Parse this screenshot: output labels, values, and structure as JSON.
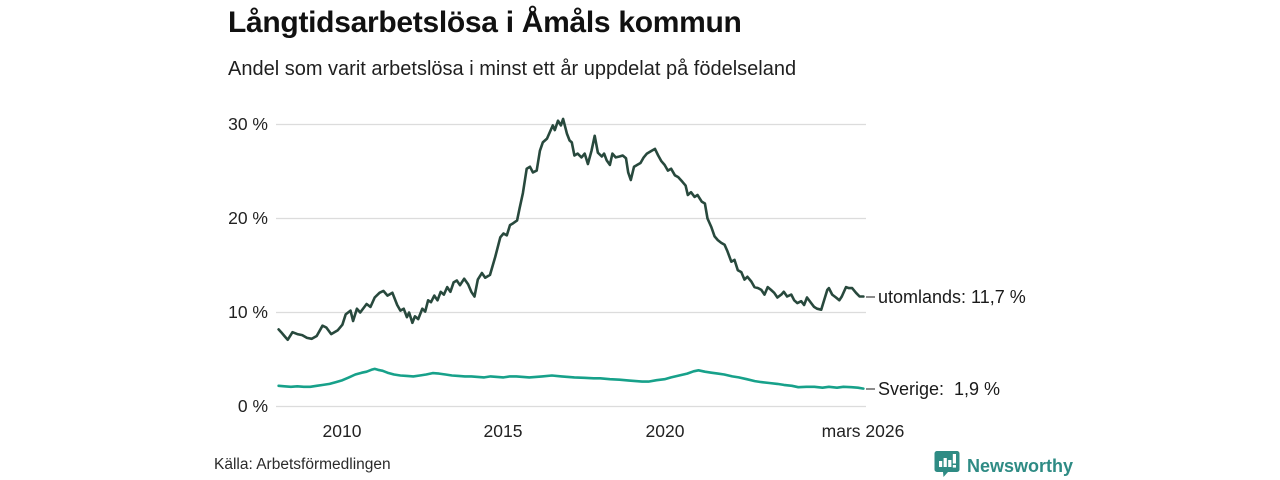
{
  "header": {
    "title": "Långtidsarbetslösa i Åmåls kommun",
    "subtitle": "Andel som varit arbetslösa i minst ett år uppdelat på födelseland"
  },
  "footer": {
    "source": "Källa: Arbetsförmedlingen",
    "brand": "Newsworthy",
    "brand_color": "#2e8b84"
  },
  "colors": {
    "gridline": "#dcdcdc",
    "legend_dash": "#8c8c8c",
    "utomlands_line": "#28493d",
    "sverige_line": "#17a18a"
  },
  "chart_data": {
    "type": "line",
    "title": "Långtidsarbetslösa i Åmåls kommun",
    "subtitle": "Andel som varit arbetslösa i minst ett år uppdelat på födelseland",
    "grid": "horizontal-only",
    "legend_position": "right-of-line-ends",
    "x_axis": {
      "label": "",
      "range": [
        2008.0,
        2026.25
      ],
      "tick_labels": [
        "2010",
        "2015",
        "2020",
        "mars 2026"
      ],
      "tick_positions": [
        2010,
        2015,
        2020,
        2026.2
      ]
    },
    "y_axis": {
      "label": "",
      "unit": "%",
      "ylim": [
        0,
        31
      ],
      "tick_labels": [
        "30 %",
        "20 %",
        "10 %",
        "0 %"
      ],
      "tick_values": [
        30,
        20,
        10,
        0
      ]
    },
    "series": [
      {
        "name": "utomlands",
        "label": "utomlands: 11,7 %",
        "last_value": "11,7 %",
        "color": "#28493d",
        "points": [
          [
            2008.02,
            8.2
          ],
          [
            2008.1,
            7.9
          ],
          [
            2008.2,
            7.5
          ],
          [
            2008.3,
            7.1
          ],
          [
            2008.45,
            7.9
          ],
          [
            2008.6,
            7.7
          ],
          [
            2008.75,
            7.6
          ],
          [
            2008.9,
            7.3
          ],
          [
            2009.05,
            7.2
          ],
          [
            2009.2,
            7.5
          ],
          [
            2009.38,
            8.6
          ],
          [
            2009.5,
            8.4
          ],
          [
            2009.65,
            7.7
          ],
          [
            2009.85,
            8.1
          ],
          [
            2010.0,
            8.7
          ],
          [
            2010.1,
            9.8
          ],
          [
            2010.25,
            10.2
          ],
          [
            2010.33,
            9.1
          ],
          [
            2010.45,
            10.4
          ],
          [
            2010.55,
            10.0
          ],
          [
            2010.75,
            10.9
          ],
          [
            2010.87,
            10.6
          ],
          [
            2011.0,
            11.6
          ],
          [
            2011.15,
            12.1
          ],
          [
            2011.27,
            12.3
          ],
          [
            2011.4,
            11.8
          ],
          [
            2011.55,
            12.1
          ],
          [
            2011.7,
            10.8
          ],
          [
            2011.8,
            10.2
          ],
          [
            2011.9,
            10.4
          ],
          [
            2012.0,
            9.5
          ],
          [
            2012.07,
            10.0
          ],
          [
            2012.17,
            8.9
          ],
          [
            2012.25,
            9.6
          ],
          [
            2012.35,
            9.3
          ],
          [
            2012.48,
            10.4
          ],
          [
            2012.57,
            10.1
          ],
          [
            2012.66,
            11.3
          ],
          [
            2012.75,
            11.1
          ],
          [
            2012.85,
            11.8
          ],
          [
            2012.95,
            11.3
          ],
          [
            2013.05,
            12.2
          ],
          [
            2013.15,
            11.9
          ],
          [
            2013.25,
            12.7
          ],
          [
            2013.35,
            12.2
          ],
          [
            2013.45,
            13.2
          ],
          [
            2013.55,
            13.4
          ],
          [
            2013.65,
            12.9
          ],
          [
            2013.78,
            13.6
          ],
          [
            2013.9,
            13.0
          ],
          [
            2014.0,
            12.2
          ],
          [
            2014.1,
            11.7
          ],
          [
            2014.2,
            13.5
          ],
          [
            2014.33,
            14.2
          ],
          [
            2014.43,
            13.7
          ],
          [
            2014.58,
            14.0
          ],
          [
            2014.74,
            15.9
          ],
          [
            2014.9,
            18.0
          ],
          [
            2015.0,
            18.4
          ],
          [
            2015.1,
            18.2
          ],
          [
            2015.2,
            19.3
          ],
          [
            2015.3,
            19.5
          ],
          [
            2015.42,
            19.8
          ],
          [
            2015.5,
            21.1
          ],
          [
            2015.6,
            22.7
          ],
          [
            2015.72,
            25.3
          ],
          [
            2015.82,
            25.5
          ],
          [
            2015.91,
            24.9
          ],
          [
            2016.03,
            25.1
          ],
          [
            2016.13,
            27.2
          ],
          [
            2016.22,
            28.1
          ],
          [
            2016.35,
            28.5
          ],
          [
            2016.44,
            29.2
          ],
          [
            2016.53,
            29.9
          ],
          [
            2016.59,
            29.4
          ],
          [
            2016.69,
            30.4
          ],
          [
            2016.78,
            29.9
          ],
          [
            2016.85,
            30.6
          ],
          [
            2016.97,
            29.0
          ],
          [
            2017.05,
            28.3
          ],
          [
            2017.12,
            28.1
          ],
          [
            2017.2,
            26.7
          ],
          [
            2017.3,
            26.9
          ],
          [
            2017.42,
            26.5
          ],
          [
            2017.52,
            26.9
          ],
          [
            2017.62,
            25.8
          ],
          [
            2017.73,
            27.2
          ],
          [
            2017.83,
            28.8
          ],
          [
            2017.93,
            27.0
          ],
          [
            2018.05,
            26.6
          ],
          [
            2018.12,
            26.9
          ],
          [
            2018.2,
            26.2
          ],
          [
            2018.3,
            25.7
          ],
          [
            2018.38,
            26.9
          ],
          [
            2018.48,
            26.5
          ],
          [
            2018.6,
            26.6
          ],
          [
            2018.7,
            26.7
          ],
          [
            2018.8,
            26.4
          ],
          [
            2018.87,
            24.9
          ],
          [
            2018.95,
            24.1
          ],
          [
            2019.05,
            25.5
          ],
          [
            2019.15,
            25.7
          ],
          [
            2019.25,
            25.9
          ],
          [
            2019.35,
            26.5
          ],
          [
            2019.45,
            26.9
          ],
          [
            2019.6,
            27.2
          ],
          [
            2019.7,
            27.4
          ],
          [
            2019.8,
            26.7
          ],
          [
            2019.9,
            26.1
          ],
          [
            2020.0,
            25.7
          ],
          [
            2020.1,
            25.1
          ],
          [
            2020.2,
            25.3
          ],
          [
            2020.32,
            24.6
          ],
          [
            2020.42,
            24.4
          ],
          [
            2020.55,
            23.9
          ],
          [
            2020.65,
            23.5
          ],
          [
            2020.72,
            22.5
          ],
          [
            2020.82,
            22.8
          ],
          [
            2020.93,
            22.3
          ],
          [
            2021.02,
            22.5
          ],
          [
            2021.15,
            21.8
          ],
          [
            2021.25,
            21.6
          ],
          [
            2021.33,
            20.0
          ],
          [
            2021.45,
            19.1
          ],
          [
            2021.55,
            18.1
          ],
          [
            2021.65,
            17.7
          ],
          [
            2021.76,
            17.4
          ],
          [
            2021.86,
            17.2
          ],
          [
            2021.95,
            16.5
          ],
          [
            2022.07,
            15.4
          ],
          [
            2022.17,
            15.6
          ],
          [
            2022.27,
            14.5
          ],
          [
            2022.38,
            14.3
          ],
          [
            2022.48,
            13.5
          ],
          [
            2022.57,
            13.8
          ],
          [
            2022.69,
            13.3
          ],
          [
            2022.79,
            12.7
          ],
          [
            2022.9,
            12.6
          ],
          [
            2023.0,
            12.4
          ],
          [
            2023.1,
            11.9
          ],
          [
            2023.2,
            12.7
          ],
          [
            2023.3,
            12.4
          ],
          [
            2023.4,
            12.1
          ],
          [
            2023.5,
            11.6
          ],
          [
            2023.62,
            11.9
          ],
          [
            2023.7,
            12.2
          ],
          [
            2023.8,
            11.7
          ],
          [
            2023.93,
            11.9
          ],
          [
            2024.02,
            11.3
          ],
          [
            2024.12,
            11.0
          ],
          [
            2024.24,
            11.2
          ],
          [
            2024.33,
            10.8
          ],
          [
            2024.42,
            11.6
          ],
          [
            2024.55,
            11.0
          ],
          [
            2024.64,
            10.6
          ],
          [
            2024.73,
            10.4
          ],
          [
            2024.86,
            10.3
          ],
          [
            2024.95,
            11.3
          ],
          [
            2025.05,
            12.4
          ],
          [
            2025.1,
            12.6
          ],
          [
            2025.2,
            11.9
          ],
          [
            2025.32,
            11.6
          ],
          [
            2025.42,
            11.3
          ],
          [
            2025.5,
            11.7
          ],
          [
            2025.63,
            12.7
          ],
          [
            2025.72,
            12.6
          ],
          [
            2025.82,
            12.6
          ],
          [
            2025.94,
            12.1
          ],
          [
            2026.05,
            11.7
          ],
          [
            2026.17,
            11.7
          ]
        ]
      },
      {
        "name": "Sverige",
        "label": "Sverige:  1,9 %",
        "last_value": "1,9 %",
        "color": "#17a18a",
        "points": [
          [
            2008.02,
            2.2
          ],
          [
            2008.2,
            2.15
          ],
          [
            2008.4,
            2.1
          ],
          [
            2008.6,
            2.15
          ],
          [
            2008.8,
            2.1
          ],
          [
            2009.0,
            2.1
          ],
          [
            2009.2,
            2.2
          ],
          [
            2009.4,
            2.3
          ],
          [
            2009.6,
            2.4
          ],
          [
            2009.8,
            2.6
          ],
          [
            2010.0,
            2.8
          ],
          [
            2010.2,
            3.1
          ],
          [
            2010.4,
            3.4
          ],
          [
            2010.6,
            3.6
          ],
          [
            2010.75,
            3.7
          ],
          [
            2010.9,
            3.9
          ],
          [
            2011.0,
            4.0
          ],
          [
            2011.1,
            3.9
          ],
          [
            2011.25,
            3.8
          ],
          [
            2011.4,
            3.6
          ],
          [
            2011.6,
            3.4
          ],
          [
            2011.8,
            3.3
          ],
          [
            2012.0,
            3.25
          ],
          [
            2012.2,
            3.2
          ],
          [
            2012.4,
            3.3
          ],
          [
            2012.6,
            3.4
          ],
          [
            2012.8,
            3.55
          ],
          [
            2013.0,
            3.5
          ],
          [
            2013.2,
            3.4
          ],
          [
            2013.4,
            3.3
          ],
          [
            2013.6,
            3.25
          ],
          [
            2013.8,
            3.2
          ],
          [
            2014.0,
            3.2
          ],
          [
            2014.2,
            3.15
          ],
          [
            2014.4,
            3.1
          ],
          [
            2014.6,
            3.2
          ],
          [
            2014.8,
            3.15
          ],
          [
            2015.0,
            3.1
          ],
          [
            2015.2,
            3.2
          ],
          [
            2015.4,
            3.2
          ],
          [
            2015.6,
            3.15
          ],
          [
            2015.8,
            3.1
          ],
          [
            2016.0,
            3.15
          ],
          [
            2016.2,
            3.2
          ],
          [
            2016.5,
            3.3
          ],
          [
            2016.8,
            3.2
          ],
          [
            2017.0,
            3.15
          ],
          [
            2017.2,
            3.1
          ],
          [
            2017.5,
            3.05
          ],
          [
            2017.8,
            3.0
          ],
          [
            2018.0,
            3.0
          ],
          [
            2018.3,
            2.9
          ],
          [
            2018.6,
            2.85
          ],
          [
            2018.9,
            2.75
          ],
          [
            2019.1,
            2.7
          ],
          [
            2019.3,
            2.65
          ],
          [
            2019.5,
            2.65
          ],
          [
            2019.75,
            2.8
          ],
          [
            2020.0,
            2.9
          ],
          [
            2020.2,
            3.1
          ],
          [
            2020.45,
            3.3
          ],
          [
            2020.7,
            3.5
          ],
          [
            2020.9,
            3.75
          ],
          [
            2021.05,
            3.85
          ],
          [
            2021.25,
            3.7
          ],
          [
            2021.45,
            3.6
          ],
          [
            2021.65,
            3.5
          ],
          [
            2021.85,
            3.4
          ],
          [
            2022.1,
            3.2
          ],
          [
            2022.3,
            3.1
          ],
          [
            2022.55,
            2.9
          ],
          [
            2022.8,
            2.7
          ],
          [
            2023.0,
            2.6
          ],
          [
            2023.25,
            2.5
          ],
          [
            2023.5,
            2.4
          ],
          [
            2023.7,
            2.3
          ],
          [
            2023.95,
            2.2
          ],
          [
            2024.15,
            2.05
          ],
          [
            2024.4,
            2.1
          ],
          [
            2024.65,
            2.1
          ],
          [
            2024.9,
            2.0
          ],
          [
            2025.1,
            2.1
          ],
          [
            2025.35,
            2.0
          ],
          [
            2025.55,
            2.1
          ],
          [
            2025.8,
            2.05
          ],
          [
            2026.0,
            2.0
          ],
          [
            2026.17,
            1.9
          ]
        ]
      }
    ]
  }
}
